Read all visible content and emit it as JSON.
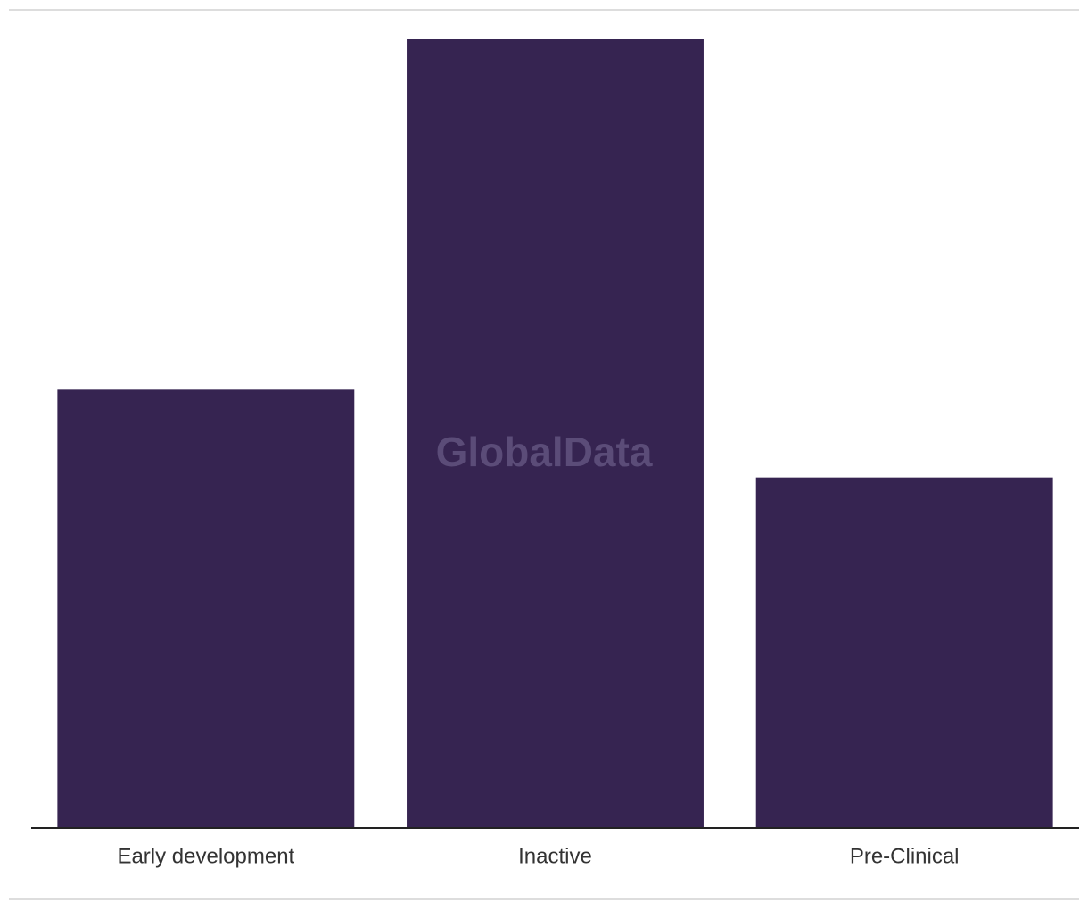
{
  "chart_data": {
    "type": "bar",
    "categories": [
      "Early development",
      "Inactive",
      "Pre-Clinical"
    ],
    "values": [
      5,
      9,
      4
    ],
    "color": "#362451",
    "ylim": [
      0,
      9
    ],
    "watermark": "GlobalData"
  }
}
